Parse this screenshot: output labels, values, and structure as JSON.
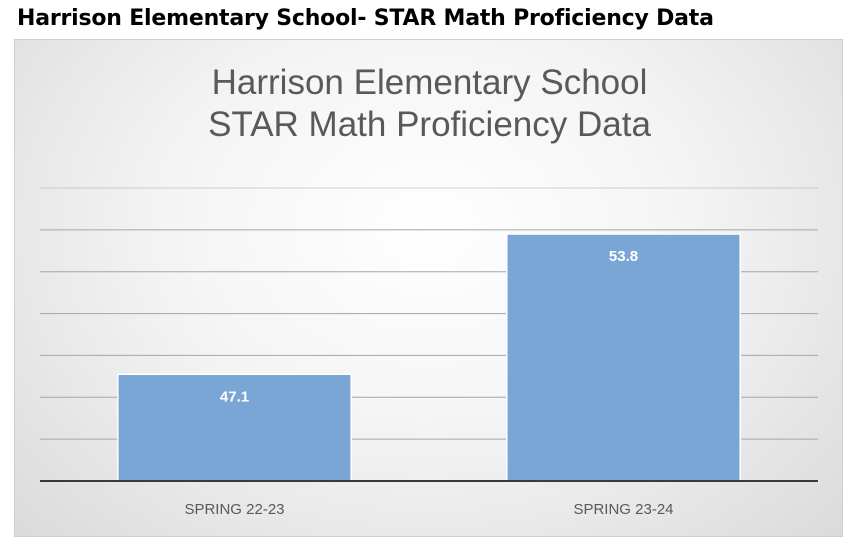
{
  "page": {
    "heading": "Harrison Elementary School- STAR Math Proficiency Data"
  },
  "chart_data": {
    "type": "bar",
    "title_lines": [
      "Harrison Elementary School",
      "STAR Math Proficiency Data"
    ],
    "categories": [
      "SPRING 22-23",
      "SPRING 23-24"
    ],
    "values": [
      47.1,
      53.8
    ],
    "data_labels": [
      "47.1",
      "53.8"
    ],
    "ylim": [
      42,
      56
    ],
    "grid": true,
    "legend": "none",
    "bar_color": "#7aa6d6",
    "gridline_color": "#a6a6a6",
    "axis_color": "#3a3a3a"
  }
}
